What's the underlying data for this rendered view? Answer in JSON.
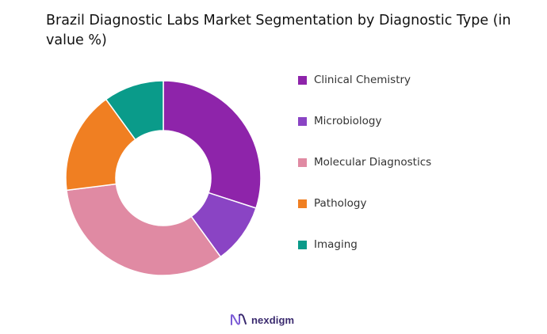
{
  "chart_data": {
    "type": "pie",
    "subtype": "donut",
    "title": "Brazil Diagnostic Labs Market Segmentation by Diagnostic Type (in value %)",
    "legend_position": "right",
    "categories": [
      "Clinical Chemistry",
      "Microbiology",
      "Molecular Diagnostics",
      "Pathology",
      "Imaging"
    ],
    "values": [
      30,
      10,
      33,
      17,
      10
    ],
    "unit": "%",
    "colors": [
      "#8e24aa",
      "#8a44c4",
      "#e08aa3",
      "#f07f22",
      "#0a9b8a"
    ]
  },
  "brand": {
    "name": "nexdigm",
    "icon": "nexdigm-logo-icon",
    "color": "#3a2a6e",
    "accent": "#7b5cd6"
  }
}
